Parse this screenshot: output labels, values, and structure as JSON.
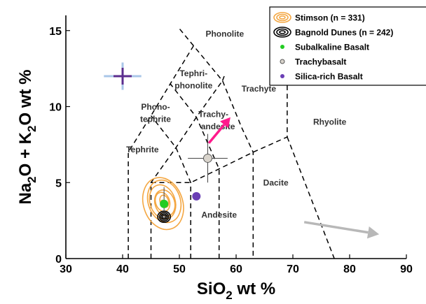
{
  "chart_data": {
    "type": "scatter",
    "xlabel_main": "SiO",
    "xlabel_sub": "2",
    "xlabel_rest": " wt %",
    "ylabel_parts": [
      {
        "text": "Na",
        "sub": false
      },
      {
        "text": "2",
        "sub": true
      },
      {
        "text": "O + K",
        "sub": false
      },
      {
        "text": "2",
        "sub": true
      },
      {
        "text": "O wt %",
        "sub": false
      }
    ],
    "xlim": [
      30,
      90
    ],
    "ylim": [
      0,
      16
    ],
    "x_ticks": [
      30,
      40,
      50,
      60,
      70,
      80,
      90
    ],
    "y_ticks": [
      0,
      5,
      10,
      15
    ],
    "x_tick_labels": [
      "30",
      "40",
      "50",
      "60",
      "70",
      "80",
      "90"
    ],
    "y_tick_labels": [
      "0",
      "5",
      "10",
      "15"
    ],
    "field_labels": [
      {
        "text": "Phonolite",
        "x": 58,
        "y": 14.6
      },
      {
        "text": "Tephri-",
        "x": 52.5,
        "y": 12.0
      },
      {
        "text": "phonolite",
        "x": 52.5,
        "y": 11.2
      },
      {
        "text": "Trachyte",
        "x": 64,
        "y": 11.0
      },
      {
        "text": "Phono-",
        "x": 45.8,
        "y": 9.8
      },
      {
        "text": "tephrite",
        "x": 45.8,
        "y": 9.0
      },
      {
        "text": "Trachy-",
        "x": 56,
        "y": 9.3
      },
      {
        "text": "andesite",
        "x": 56.8,
        "y": 8.5
      },
      {
        "text": "Rhyolite",
        "x": 76.5,
        "y": 8.8
      },
      {
        "text": "Tephrite",
        "x": 43.5,
        "y": 7.0
      },
      {
        "text": "Dacite",
        "x": 67,
        "y": 4.8
      },
      {
        "text": "Andesite",
        "x": 57,
        "y": 2.7
      }
    ],
    "series": [
      {
        "name": "Subalkaline Basalt",
        "marker": "circle",
        "color": "#22cc22",
        "points": [
          {
            "x": 47.3,
            "y": 3.6,
            "xerr": 0,
            "yerr": 1.1
          }
        ]
      },
      {
        "name": "Trachybasalt",
        "marker": "circle",
        "color": "#d9d4cc",
        "points": [
          {
            "x": 55.0,
            "y": 6.6,
            "xerr": 3.5,
            "yerr": 1.6
          }
        ]
      },
      {
        "name": "Silica-rich Basalt",
        "marker": "circle",
        "color": "#6a3fb5",
        "points": [
          {
            "x": 53.0,
            "y": 4.1,
            "xerr": 0,
            "yerr": 0
          }
        ]
      }
    ],
    "contour_groups": [
      {
        "name": "Stimson (n = 331)",
        "color": "#f4a742",
        "center": [
          47.2,
          3.7
        ]
      },
      {
        "name": "Bagnold Dunes (n = 242)",
        "color": "#000000",
        "center": [
          47.3,
          2.75
        ]
      }
    ],
    "extra_marker": {
      "x": 40.0,
      "y": 12.0,
      "xerr": 3.3,
      "yerr": 0.9,
      "color": "#5b2d8e",
      "errcolor": "#a9c6e8"
    },
    "legend_position": "top-right",
    "grid": false
  }
}
